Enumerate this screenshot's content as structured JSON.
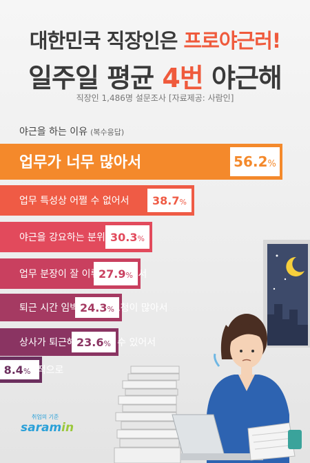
{
  "header": {
    "title_line1_a": "대한민국 직장인은 ",
    "title_line1_b": "프로야근러!",
    "title_line2_a": "일주일 평균 ",
    "title_line2_b": "4번",
    "title_line2_c": " 야근해",
    "subtitle_a": "직장인 1,486명 설문조사",
    "subtitle_b": "[자료제공: 사람인]"
  },
  "section": {
    "title": "야근을 하는 이유",
    "note": "(복수응답)"
  },
  "logo": {
    "tagline": "취업의 기준",
    "brand": "saram",
    "brand_suffix": "in"
  },
  "colors": {
    "accent": "#ef5a3c",
    "bars": [
      "#f4892b",
      "#ef5b45",
      "#e24a5c",
      "#c9405f",
      "#a53a62",
      "#8a3462",
      "#6c2f5e"
    ],
    "values": [
      "#f4892b",
      "#ef5b45",
      "#e24a5c",
      "#c9405f",
      "#a53a62",
      "#8a3462",
      "#6c2f5e"
    ]
  },
  "chart_data": {
    "type": "bar",
    "orientation": "horizontal",
    "title": "야근을 하는 이유",
    "categories": [
      "업무가 너무 많아서",
      "업무 특성상 어쩔 수 없어서",
      "야근을 강요하는 분위기여서",
      "업무 분장이 잘 이뤄지지 않아서",
      "퇴근 시간 임박한 업무 요청이 많아서",
      "상사가 퇴근해야 퇴근할 수 있어서",
      "습관적으로"
    ],
    "values": [
      56.2,
      38.7,
      30.3,
      27.9,
      24.3,
      23.6,
      8.4
    ],
    "value_labels": [
      "56.2",
      "38.7",
      "30.3",
      "27.9",
      "24.3",
      "23.6",
      "8.4"
    ],
    "unit": "%",
    "grid": false
  }
}
